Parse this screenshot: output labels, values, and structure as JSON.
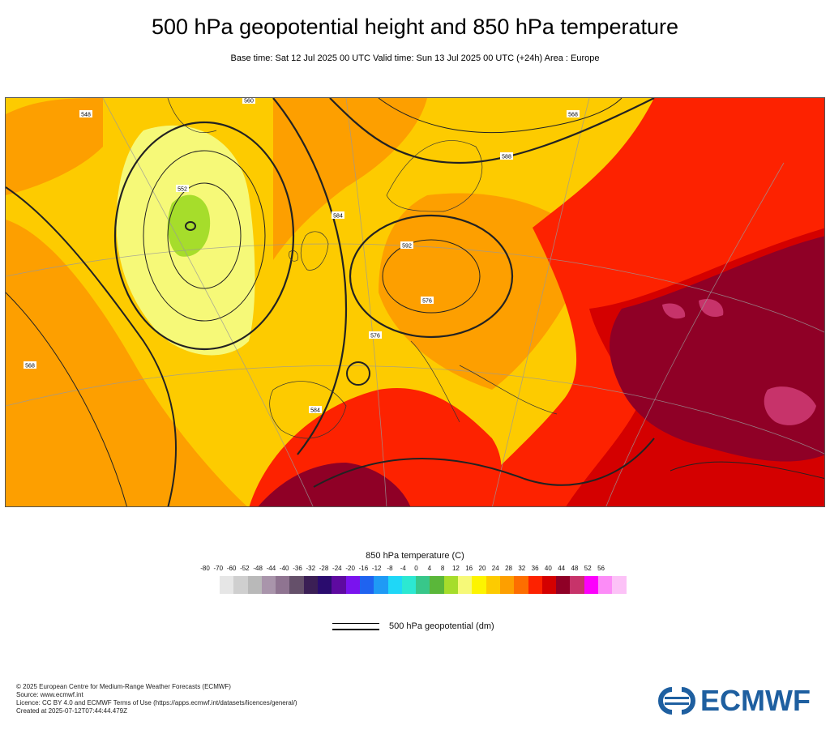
{
  "header": {
    "title": "500 hPa geopotential height and 850 hPa temperature",
    "subtitle": "Base time: Sat 12 Jul 2025 00 UTC Valid time: Sun 13 Jul 2025 00 UTC (+24h) Area : Europe"
  },
  "map": {
    "contour_labels": [
      "560",
      "568",
      "576",
      "584",
      "552",
      "548",
      "592",
      "588",
      "584",
      "576",
      "568"
    ],
    "region": "Europe"
  },
  "legend": {
    "temperature_title": "850 hPa temperature (C)",
    "scale_values": [
      "-80",
      "-70",
      "-60",
      "-52",
      "-48",
      "-44",
      "-40",
      "-36",
      "-32",
      "-28",
      "-24",
      "-20",
      "-16",
      "-12",
      "-8",
      "-4",
      "0",
      "4",
      "8",
      "12",
      "16",
      "20",
      "24",
      "28",
      "32",
      "36",
      "40",
      "44",
      "48",
      "52",
      "56"
    ],
    "colors": [
      "#e6e6e6",
      "#cfcfcf",
      "#b9b9b9",
      "#a995ab",
      "#8f7491",
      "#65506a",
      "#3b1f55",
      "#2a0c6e",
      "#5e0aa0",
      "#7a13ee",
      "#1f63f0",
      "#1f9af5",
      "#1fd7f7",
      "#2ce8d2",
      "#38c78a",
      "#5ab73a",
      "#a6dd2b",
      "#f6f978",
      "#fdf400",
      "#fdcb00",
      "#fd9f00",
      "#fd6e00",
      "#fd2200",
      "#d40000",
      "#8f0026",
      "#c7336a",
      "#fc00fc",
      "#fc8cf7",
      "#fcc2f7",
      "#f0d7ef",
      "#e6e6e6"
    ],
    "geopotential_label": "500 hPa geopotential (dm)"
  },
  "footer": {
    "line1": "© 2025 European Centre for Medium-Range Weather Forecasts (ECMWF)",
    "line2": "Source: www.ecmwf.int",
    "line3": "Licence: CC BY 4.0 and ECMWF Terms of Use (https://apps.ecmwf.int/datasets/licences/general/)",
    "line4": "Created at 2025-07-12T07:44:44.479Z"
  },
  "logo": {
    "text": "ECMWF",
    "color": "#1e5fa0"
  }
}
